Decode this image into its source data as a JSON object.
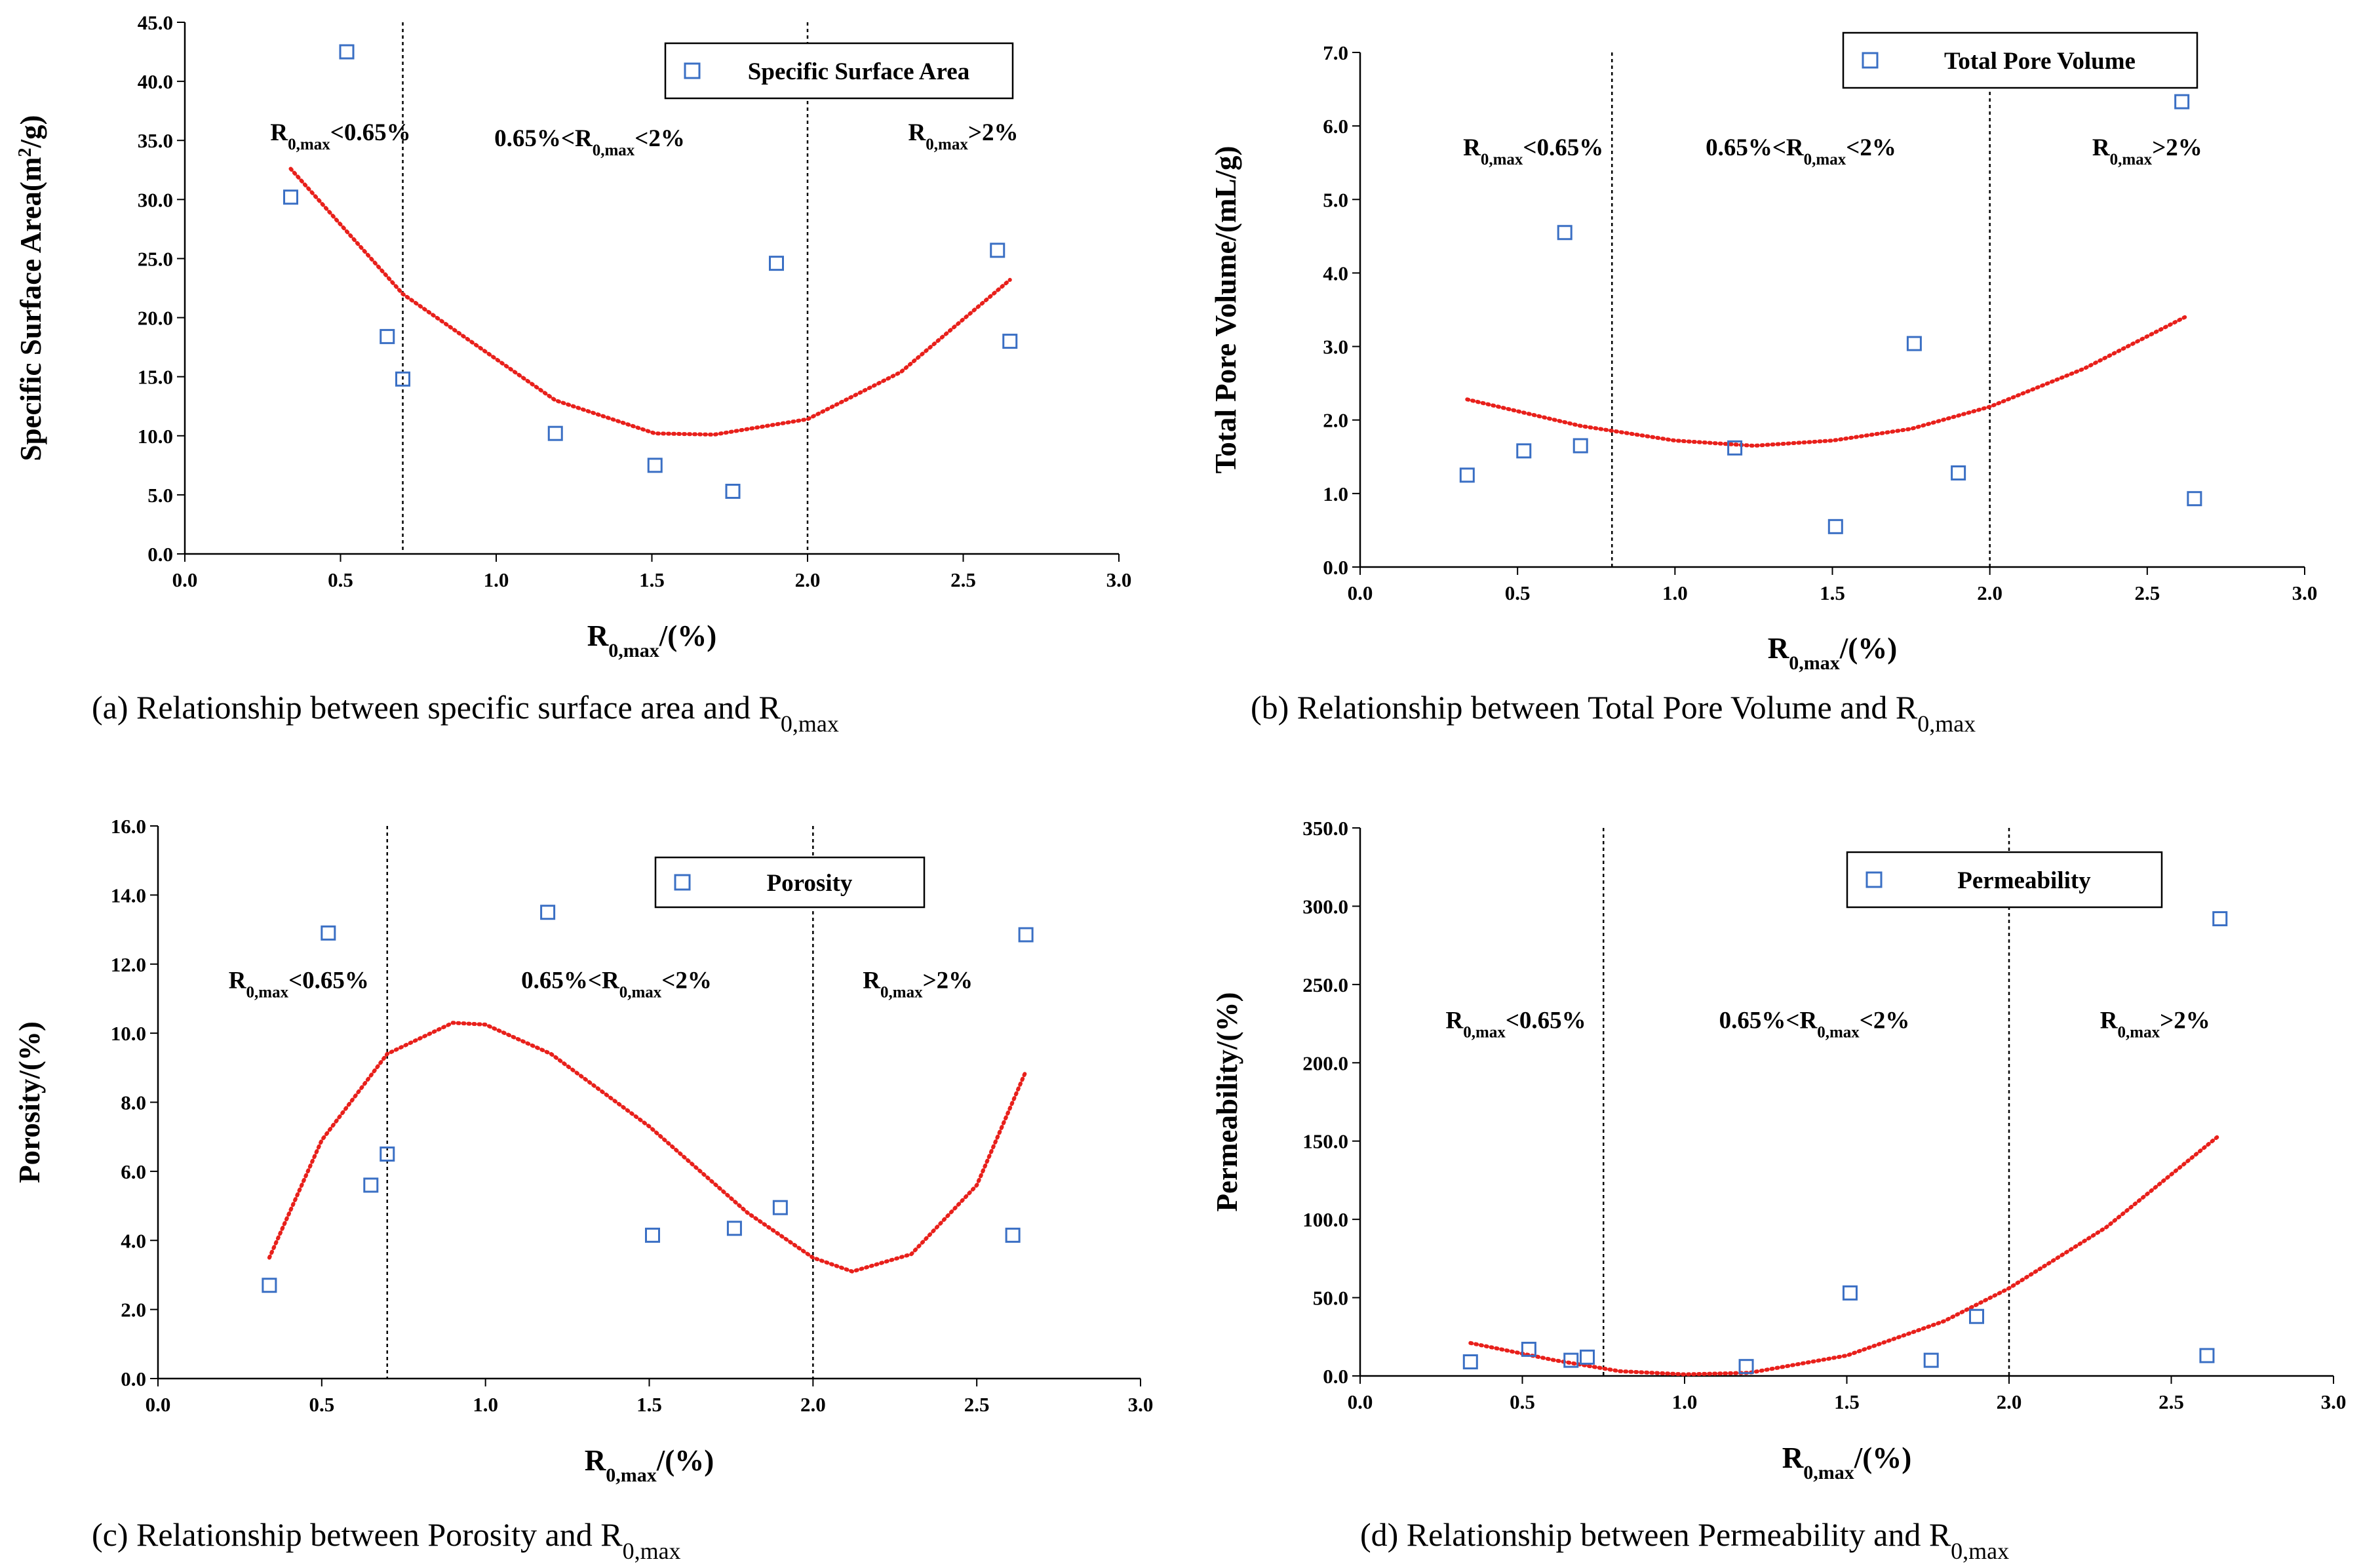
{
  "chart_data": [
    {
      "id": "a",
      "type": "scatter",
      "caption": "(a) Relationship between specific surface area and R",
      "caption_sub": "0,max",
      "ylabel": "Specific Surface Area(m",
      "ylabel_sup": "2",
      "ylabel_tail": "/g)",
      "xlabel": "R",
      "xlabel_sub": "0,max",
      "xlabel_tail": "/(%)",
      "xlim": [
        0,
        3
      ],
      "ylim": [
        0,
        45
      ],
      "xticks": [
        "0.0",
        "0.5",
        "1.0",
        "1.5",
        "2.0",
        "2.5",
        "3.0"
      ],
      "yticks": [
        "0.0",
        "5.0",
        "10.0",
        "15.0",
        "20.0",
        "25.0",
        "30.0",
        "35.0",
        "40.0",
        "45.0"
      ],
      "legend": "Specific Surface Area",
      "legend_position": "top-right",
      "boundaries": [
        0.7,
        2.0
      ],
      "regions": [
        {
          "pre": "R",
          "sub": "0,max",
          "post": "<0.65%",
          "x": 0.5,
          "y": 35
        },
        {
          "pre": "0.65%<R",
          "sub": "0,max",
          "post": "<2%",
          "x": 1.3,
          "y": 34.5
        },
        {
          "pre": "R",
          "sub": "0,max",
          "post": ">2%",
          "x": 2.5,
          "y": 35
        }
      ],
      "series": [
        {
          "name": "Specific Surface Area",
          "x": [
            0.34,
            0.52,
            0.65,
            0.7,
            1.19,
            1.51,
            1.76,
            1.9,
            2.61,
            2.65
          ],
          "y": [
            30.2,
            42.5,
            18.4,
            14.8,
            10.2,
            7.5,
            5.3,
            24.6,
            25.7,
            18.0
          ]
        }
      ],
      "trendline": {
        "type": "polynomial",
        "x_range": [
          0.34,
          2.65
        ],
        "points": [
          [
            0.34,
            32.6
          ],
          [
            0.7,
            22.0
          ],
          [
            1.19,
            13.0
          ],
          [
            1.51,
            10.2
          ],
          [
            1.7,
            10.1
          ],
          [
            2.0,
            11.4
          ],
          [
            2.3,
            15.4
          ],
          [
            2.65,
            23.2
          ]
        ]
      }
    },
    {
      "id": "b",
      "type": "scatter",
      "caption": "(b) Relationship between Total Pore Volume and R",
      "caption_sub": "0,max",
      "ylabel": "Total Pore Volume/(mL/g)",
      "ylabel_sup": "",
      "ylabel_tail": "",
      "xlabel": "R",
      "xlabel_sub": "0,max",
      "xlabel_tail": "/(%)",
      "xlim": [
        0,
        3
      ],
      "ylim": [
        0,
        7
      ],
      "xticks": [
        "0.0",
        "0.5",
        "1.0",
        "1.5",
        "2.0",
        "2.5",
        "3.0"
      ],
      "yticks": [
        "0.0",
        "1.0",
        "2.0",
        "3.0",
        "4.0",
        "5.0",
        "6.0",
        "7.0"
      ],
      "legend": "Total Pore Volume",
      "legend_position": "top-right",
      "boundaries": [
        0.8,
        2.0
      ],
      "regions": [
        {
          "pre": "R",
          "sub": "0,max",
          "post": "<0.65%",
          "x": 0.55,
          "y": 5.6
        },
        {
          "pre": "0.65%<R",
          "sub": "0,max",
          "post": "<2%",
          "x": 1.4,
          "y": 5.6
        },
        {
          "pre": "R",
          "sub": "0,max",
          "post": ">2%",
          "x": 2.5,
          "y": 5.6
        }
      ],
      "series": [
        {
          "name": "Total Pore Volume",
          "x": [
            0.34,
            0.52,
            0.65,
            0.7,
            1.19,
            1.51,
            1.76,
            1.9,
            2.61,
            2.65
          ],
          "y": [
            1.25,
            1.58,
            4.55,
            1.65,
            1.62,
            0.55,
            3.04,
            1.28,
            6.33,
            0.93
          ]
        }
      ],
      "trendline": {
        "type": "polynomial",
        "x_range": [
          0.34,
          2.62
        ],
        "points": [
          [
            0.34,
            2.28
          ],
          [
            0.7,
            1.92
          ],
          [
            1.0,
            1.72
          ],
          [
            1.25,
            1.65
          ],
          [
            1.5,
            1.72
          ],
          [
            1.75,
            1.88
          ],
          [
            2.0,
            2.18
          ],
          [
            2.3,
            2.7
          ],
          [
            2.62,
            3.4
          ]
        ]
      }
    },
    {
      "id": "c",
      "type": "scatter",
      "caption": "(c) Relationship between Porosity and R",
      "caption_sub": "0,max",
      "ylabel": "Porosity/(%)",
      "ylabel_sup": "",
      "ylabel_tail": "",
      "xlabel": "R",
      "xlabel_sub": "0,max",
      "xlabel_tail": "/(%)",
      "xlim": [
        0,
        3
      ],
      "ylim": [
        0,
        16
      ],
      "xticks": [
        "0.0",
        "0.5",
        "1.0",
        "1.5",
        "2.0",
        "2.5",
        "3.0"
      ],
      "yticks": [
        "0.0",
        "2.0",
        "4.0",
        "6.0",
        "8.0",
        "10.0",
        "12.0",
        "14.0",
        "16.0"
      ],
      "legend": "Porosity",
      "legend_position": "top-right",
      "boundaries": [
        0.7,
        2.0
      ],
      "regions": [
        {
          "pre": "R",
          "sub": "0,max",
          "post": "<0.65%",
          "x": 0.43,
          "y": 11.3
        },
        {
          "pre": "0.65%<R",
          "sub": "0,max",
          "post": "<2%",
          "x": 1.4,
          "y": 11.3
        },
        {
          "pre": "R",
          "sub": "0,max",
          "post": ">2%",
          "x": 2.32,
          "y": 11.3
        }
      ],
      "series": [
        {
          "name": "Porosity",
          "x": [
            0.34,
            0.52,
            0.65,
            0.7,
            1.19,
            1.51,
            1.76,
            1.9,
            2.61,
            2.65
          ],
          "y": [
            2.7,
            12.9,
            5.6,
            6.5,
            13.5,
            4.15,
            4.35,
            4.95,
            4.15,
            12.85
          ]
        }
      ],
      "trendline": {
        "type": "polynomial",
        "x_range": [
          0.34,
          2.65
        ],
        "points": [
          [
            0.34,
            3.5
          ],
          [
            0.5,
            6.9
          ],
          [
            0.7,
            9.4
          ],
          [
            0.9,
            10.3
          ],
          [
            1.0,
            10.25
          ],
          [
            1.2,
            9.4
          ],
          [
            1.5,
            7.3
          ],
          [
            1.8,
            4.8
          ],
          [
            2.0,
            3.5
          ],
          [
            2.12,
            3.1
          ],
          [
            2.3,
            3.6
          ],
          [
            2.5,
            5.6
          ],
          [
            2.65,
            8.9
          ]
        ]
      }
    },
    {
      "id": "d",
      "type": "scatter",
      "caption": "(d) Relationship between Permeability and R",
      "caption_sub": "0,max",
      "ylabel": "Permeability/(%)",
      "ylabel_sup": "",
      "ylabel_tail": "",
      "xlabel": "R",
      "xlabel_sub": "0,max",
      "xlabel_tail": "/(%)",
      "xlim": [
        0,
        3
      ],
      "ylim": [
        0,
        350
      ],
      "xticks": [
        "0.0",
        "0.5",
        "1.0",
        "1.5",
        "2.0",
        "2.5",
        "3.0"
      ],
      "yticks": [
        "0.0",
        "50.0",
        "100.0",
        "150.0",
        "200.0",
        "250.0",
        "300.0",
        "350.0"
      ],
      "legend": "Permeability",
      "legend_position": "top-right",
      "boundaries": [
        0.75,
        2.0
      ],
      "regions": [
        {
          "pre": "R",
          "sub": "0,max",
          "post": "<0.65%",
          "x": 0.48,
          "y": 222
        },
        {
          "pre": "0.65%<R",
          "sub": "0,max",
          "post": "<2%",
          "x": 1.4,
          "y": 222
        },
        {
          "pre": "R",
          "sub": "0,max",
          "post": ">2%",
          "x": 2.45,
          "y": 222
        }
      ],
      "series": [
        {
          "name": "Permeability",
          "x": [
            0.34,
            0.52,
            0.65,
            0.7,
            1.19,
            1.51,
            1.76,
            1.9,
            2.61,
            2.65
          ],
          "y": [
            9,
            17,
            10,
            12,
            6,
            53,
            10,
            38,
            13,
            292
          ]
        }
      ],
      "trendline": {
        "type": "polynomial",
        "x_range": [
          0.34,
          2.65
        ],
        "points": [
          [
            0.34,
            21
          ],
          [
            0.6,
            10
          ],
          [
            0.8,
            3
          ],
          [
            1.0,
            1
          ],
          [
            1.2,
            2
          ],
          [
            1.5,
            13
          ],
          [
            1.8,
            35
          ],
          [
            2.0,
            56
          ],
          [
            2.3,
            95
          ],
          [
            2.65,
            154
          ]
        ]
      }
    }
  ]
}
